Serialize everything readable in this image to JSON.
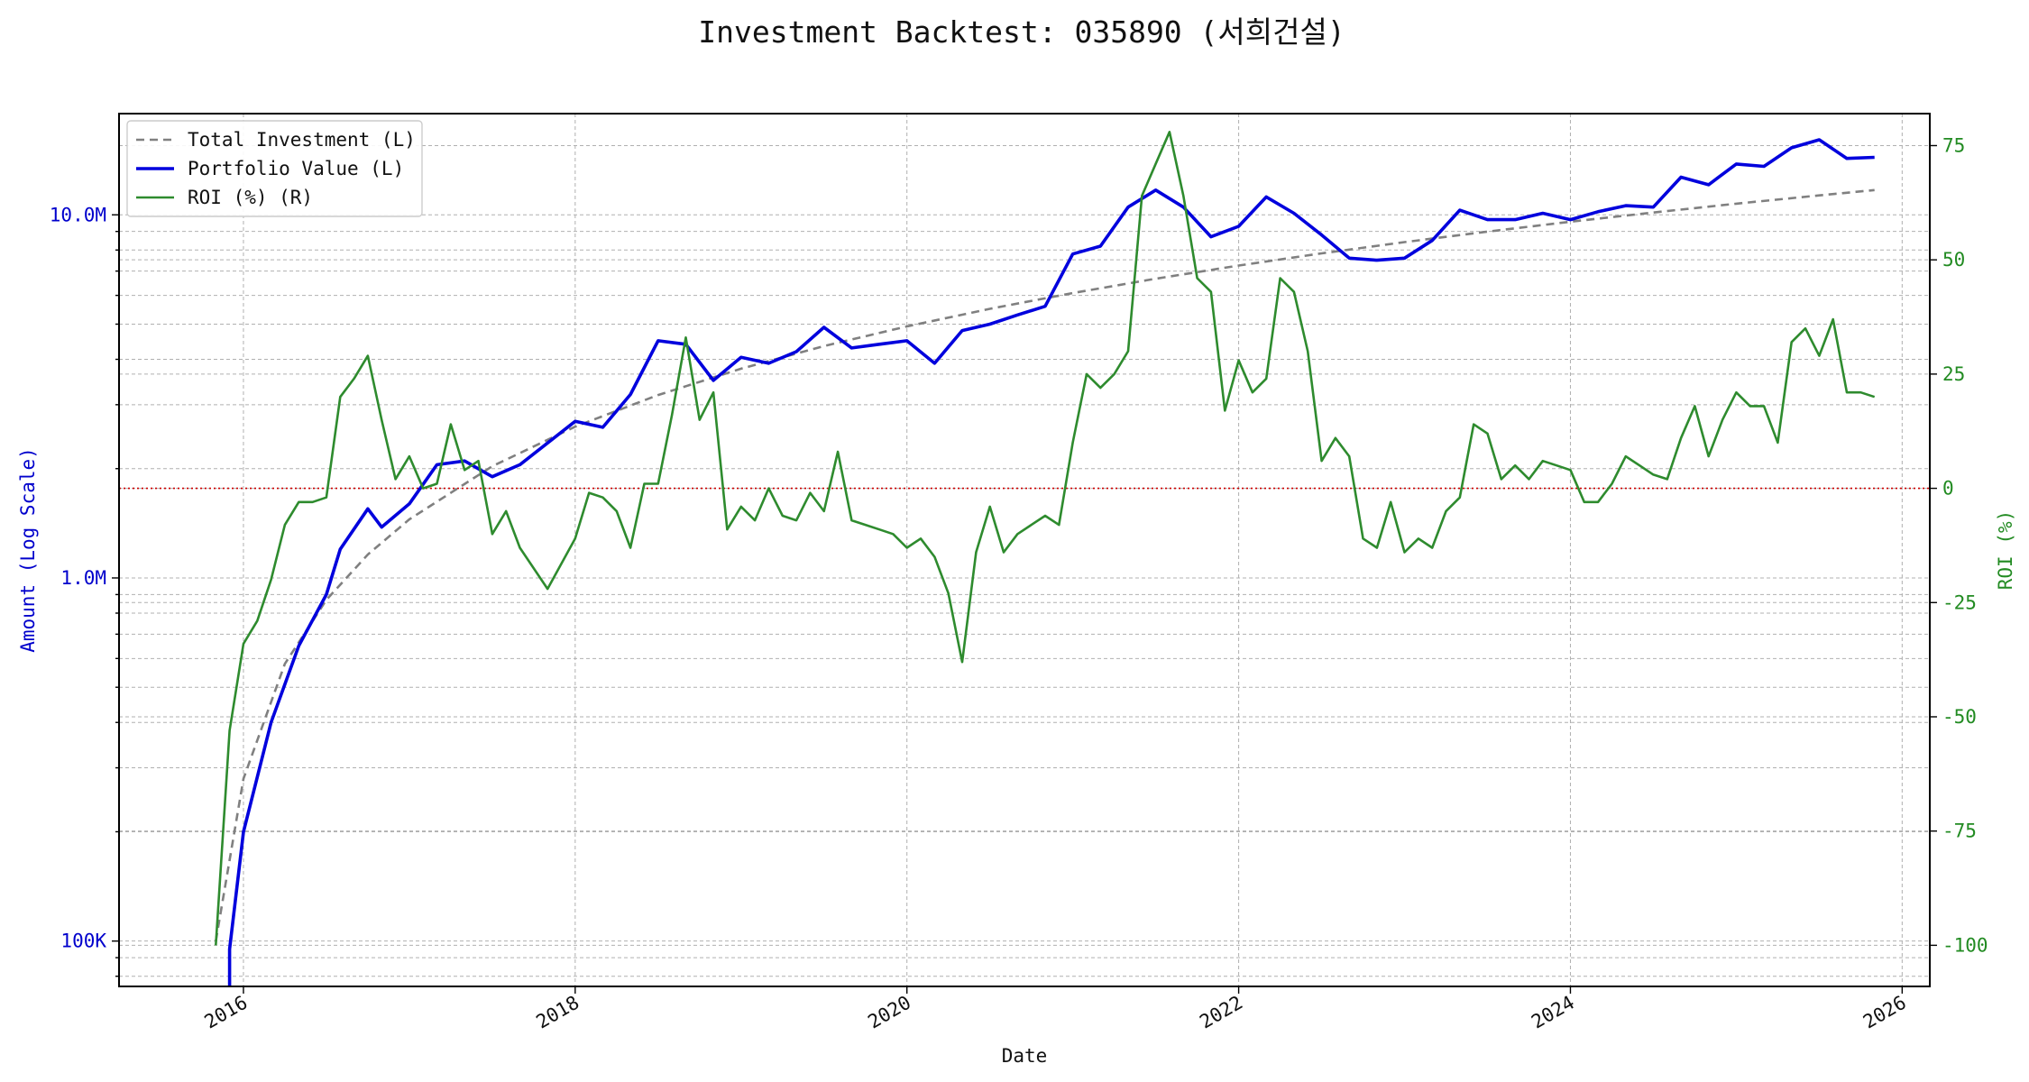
{
  "chart_data": {
    "type": "line",
    "title": "Investment Backtest: 035890 (서희건설)",
    "xlabel": "Date",
    "ylabel_left": "Amount (Log Scale)",
    "ylabel_right": "ROI (%)",
    "left_axis": {
      "scale": "log",
      "ylim": [
        75000,
        19000000
      ],
      "ticks": [
        {
          "value": 100000,
          "label": "100K"
        },
        {
          "value": 1000000,
          "label": "1.0M"
        },
        {
          "value": 10000000,
          "label": "10.0M"
        }
      ],
      "color": "#0000cc"
    },
    "right_axis": {
      "scale": "linear",
      "ylim": [
        -109,
        82
      ],
      "ticks": [
        -100,
        -75,
        -50,
        -25,
        0,
        25,
        50,
        75
      ],
      "color": "#228b22"
    },
    "x_axis": {
      "xlim": [
        "2015-04",
        "2026-03"
      ],
      "ticks": [
        "2016",
        "2018",
        "2020",
        "2022",
        "2024",
        "2026"
      ]
    },
    "grid": true,
    "legend_position": "top-left",
    "zero_line": {
      "value": 0,
      "axis": "right",
      "color": "#cc0000",
      "style": "dotted"
    },
    "colors": {
      "investment": "#808080",
      "portfolio": "#0000dd",
      "roi": "#2e8b2e"
    },
    "series": [
      {
        "name": "Total Investment (L)",
        "axis": "left",
        "style": "dashed",
        "x": [
          "2015-11",
          "2016-01",
          "2016-04",
          "2016-07",
          "2016-10",
          "2017-01",
          "2017-07",
          "2018-01",
          "2018-07",
          "2019-01",
          "2019-07",
          "2020-01",
          "2020-07",
          "2021-01",
          "2021-07",
          "2022-01",
          "2022-07",
          "2023-01",
          "2023-07",
          "2024-01",
          "2024-07",
          "2025-01",
          "2025-07",
          "2025-11"
        ],
        "values": [
          100000,
          280000,
          580000,
          870000,
          1160000,
          1450000,
          2030000,
          2610000,
          3190000,
          3770000,
          4350000,
          4930000,
          5510000,
          6090000,
          6670000,
          7250000,
          7830000,
          8410000,
          8990000,
          9570000,
          10150000,
          10730000,
          11310000,
          11700000
        ]
      },
      {
        "name": "Portfolio Value (L)",
        "axis": "left",
        "style": "solid",
        "x": [
          "2015-12",
          "2015-12",
          "2016-01",
          "2016-03",
          "2016-05",
          "2016-07",
          "2016-08",
          "2016-10",
          "2016-11",
          "2017-01",
          "2017-03",
          "2017-05",
          "2017-07",
          "2017-09",
          "2018-01",
          "2018-03",
          "2018-05",
          "2018-07",
          "2018-09",
          "2018-11",
          "2019-01",
          "2019-03",
          "2019-05",
          "2019-07",
          "2019-09",
          "2019-11",
          "2020-01",
          "2020-03",
          "2020-05",
          "2020-07",
          "2020-09",
          "2020-11",
          "2021-01",
          "2021-03",
          "2021-05",
          "2021-07",
          "2021-09",
          "2021-11",
          "2022-01",
          "2022-03",
          "2022-05",
          "2022-07",
          "2022-09",
          "2022-11",
          "2023-01",
          "2023-03",
          "2023-05",
          "2023-07",
          "2023-09",
          "2023-11",
          "2024-01",
          "2024-03",
          "2024-05",
          "2024-07",
          "2024-09",
          "2024-11",
          "2025-01",
          "2025-03",
          "2025-05",
          "2025-07",
          "2025-09",
          "2025-11"
        ],
        "values": [
          75000,
          95000,
          200000,
          400000,
          650000,
          900000,
          1200000,
          1550000,
          1380000,
          1600000,
          2050000,
          2100000,
          1900000,
          2050000,
          2700000,
          2600000,
          3200000,
          4500000,
          4400000,
          3500000,
          4050000,
          3900000,
          4200000,
          4900000,
          4300000,
          4400000,
          4500000,
          3900000,
          4800000,
          5000000,
          5300000,
          5600000,
          7800000,
          8200000,
          10500000,
          11700000,
          10500000,
          8700000,
          9300000,
          11200000,
          10100000,
          8800000,
          7600000,
          7500000,
          7600000,
          8500000,
          10300000,
          9700000,
          9700000,
          10100000,
          9700000,
          10200000,
          10600000,
          10500000,
          12700000,
          12100000,
          13800000,
          13600000,
          15300000,
          16100000,
          14300000,
          14400000
        ]
      },
      {
        "name": "ROI (%) (R)",
        "axis": "right",
        "style": "solid",
        "x": [
          "2015-11",
          "2015-12",
          "2016-01",
          "2016-02",
          "2016-03",
          "2016-04",
          "2016-05",
          "2016-06",
          "2016-07",
          "2016-08",
          "2016-09",
          "2016-10",
          "2016-11",
          "2016-12",
          "2017-01",
          "2017-02",
          "2017-03",
          "2017-04",
          "2017-05",
          "2017-06",
          "2017-07",
          "2017-08",
          "2017-09",
          "2017-11",
          "2018-01",
          "2018-02",
          "2018-03",
          "2018-04",
          "2018-05",
          "2018-06",
          "2018-07",
          "2018-08",
          "2018-09",
          "2018-10",
          "2018-11",
          "2018-12",
          "2019-01",
          "2019-02",
          "2019-03",
          "2019-04",
          "2019-05",
          "2019-06",
          "2019-07",
          "2019-08",
          "2019-09",
          "2019-10",
          "2019-11",
          "2019-12",
          "2020-01",
          "2020-02",
          "2020-03",
          "2020-04",
          "2020-05",
          "2020-06",
          "2020-07",
          "2020-08",
          "2020-09",
          "2020-10",
          "2020-11",
          "2020-12",
          "2021-01",
          "2021-02",
          "2021-03",
          "2021-04",
          "2021-05",
          "2021-06",
          "2021-07",
          "2021-08",
          "2021-09",
          "2021-10",
          "2021-11",
          "2021-12",
          "2022-01",
          "2022-02",
          "2022-03",
          "2022-04",
          "2022-05",
          "2022-06",
          "2022-07",
          "2022-08",
          "2022-09",
          "2022-10",
          "2022-11",
          "2022-12",
          "2023-01",
          "2023-02",
          "2023-03",
          "2023-04",
          "2023-05",
          "2023-06",
          "2023-07",
          "2023-08",
          "2023-09",
          "2023-10",
          "2023-11",
          "2023-12",
          "2024-01",
          "2024-02",
          "2024-03",
          "2024-04",
          "2024-05",
          "2024-06",
          "2024-07",
          "2024-08",
          "2024-09",
          "2024-10",
          "2024-11",
          "2024-12",
          "2025-01",
          "2025-02",
          "2025-03",
          "2025-04",
          "2025-05",
          "2025-06",
          "2025-07",
          "2025-08",
          "2025-09",
          "2025-10",
          "2025-11"
        ],
        "values": [
          -100,
          -53,
          -34,
          -29,
          -20,
          -8,
          -3,
          -3,
          -2,
          20,
          24,
          29,
          15,
          2,
          7,
          0,
          1,
          14,
          4,
          6,
          -10,
          -5,
          -13,
          -22,
          -11,
          -1,
          -2,
          -5,
          -13,
          1,
          1,
          16,
          33,
          15,
          21,
          -9,
          -4,
          -7,
          0,
          -6,
          -7,
          -1,
          -5,
          8,
          -7,
          -8,
          -9,
          -10,
          -13,
          -11,
          -15,
          -23,
          -38,
          -14,
          -4,
          -14,
          -10,
          -8,
          -6,
          -8,
          10,
          25,
          22,
          25,
          30,
          64,
          71,
          78,
          64,
          46,
          43,
          17,
          28,
          21,
          24,
          46,
          43,
          30,
          6,
          11,
          7,
          -11,
          -13,
          -3,
          -14,
          -11,
          -13,
          -5,
          -2,
          14,
          12,
          2,
          5,
          2,
          6,
          5,
          4,
          -3,
          -3,
          1,
          7,
          5,
          3,
          2,
          11,
          18,
          7,
          15,
          21,
          18,
          18,
          10,
          32,
          35,
          29,
          37,
          21,
          21,
          20
        ]
      }
    ]
  }
}
